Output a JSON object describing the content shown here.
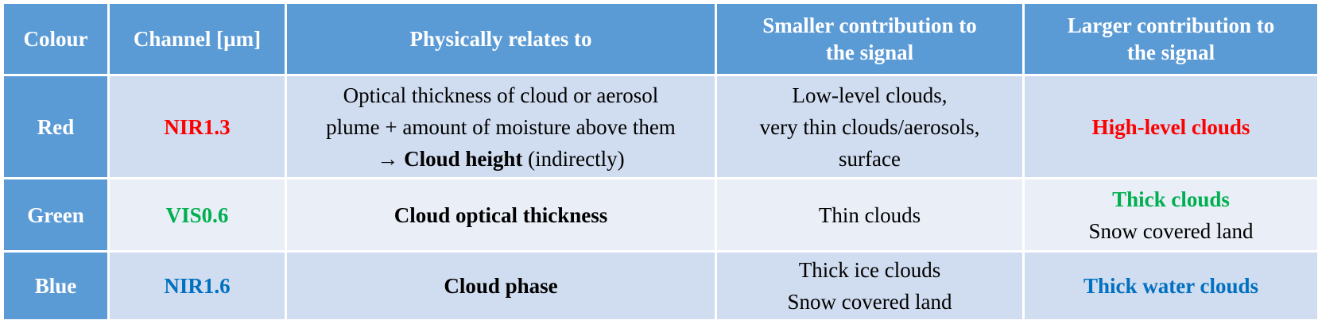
{
  "table": {
    "header": [
      "Colour",
      "Channel [µm]",
      "Physically relates to",
      [
        "Smaller contribution to",
        "the signal"
      ],
      [
        "Larger contribution to",
        "the signal"
      ]
    ],
    "rows": [
      [
        "Red",
        "NIR1.3",
        [
          "Optical thickness of cloud or aerosol",
          "plume + amount of moisture above them",
          [
            "→",
            "Cloud height",
            "(indirectly)"
          ]
        ],
        [
          "Low-level clouds,",
          "very thin clouds/aerosols,",
          "surface"
        ],
        "High-level clouds"
      ],
      [
        "Green",
        "VIS0.6",
        "Cloud optical thickness",
        "Thin clouds",
        [
          "Thick clouds",
          "Snow covered land"
        ]
      ],
      [
        "Blue",
        "NIR1.6",
        "Cloud phase",
        [
          "Thick ice clouds",
          "Snow covered land"
        ],
        "Thick water clouds"
      ]
    ]
  }
}
